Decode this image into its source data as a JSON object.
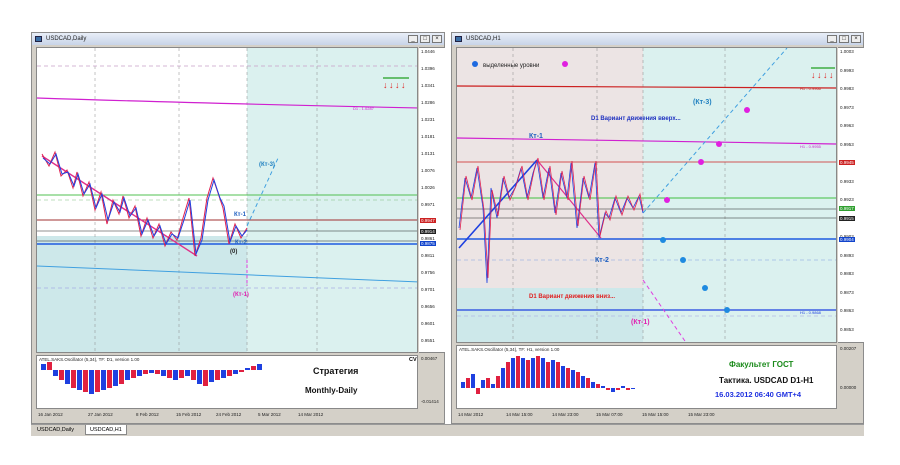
{
  "left": {
    "title": "USDCAD,Daily",
    "price_axis": [
      "1.0446",
      "1.0396",
      "1.0341",
      "1.0286",
      "1.0231",
      "1.0181",
      "1.0131",
      "1.0076",
      "1.0026",
      "0.9971",
      "0.9916",
      "0.9861",
      "0.9811",
      "0.9756",
      "0.9701",
      "0.9656",
      "0.9601",
      "0.9551"
    ],
    "price_tags": {
      "red": "0.9947",
      "dark": "0.9914",
      "blue": "0.9875"
    },
    "labels": {
      "kt3": "(Кт-3)",
      "kt1": "Кт-1",
      "kt2": "Кт-2",
      "zero": "(0)",
      "kt1b": "(Кт-1)",
      "d1": "D1 - 1.0287"
    },
    "osc_label": "ATEL.SAKS.Oscillator (5,34), TF: D1, version 1.00",
    "osc_values": [
      "0.00467",
      "-0.01414"
    ],
    "cv": "CV",
    "strategy_title": "Стратегия",
    "strategy_sub": "Monthly-Daily",
    "dates": [
      "16 Jan 2012",
      "27 Jan 2012",
      "8 Feb 2012",
      "15 Feb 2012",
      "24 Feb 2012",
      "5 Mar 2012",
      "14 Mar 2012"
    ]
  },
  "right": {
    "title": "USDCAD,H1",
    "legend": "выделенные уровни",
    "price_axis": [
      "1.0003",
      "0.9993",
      "0.9983",
      "0.9973",
      "0.9963",
      "0.9953",
      "0.9943",
      "0.9933",
      "0.9923",
      "0.9913",
      "0.9903",
      "0.9893",
      "0.9883",
      "0.9873",
      "0.9863",
      "0.9853"
    ],
    "price_tags": {
      "red": "0.9945",
      "green": "0.9917",
      "dark": "0.9915",
      "blue": "0.9904"
    },
    "labels": {
      "kt3": "(Кт-3)",
      "kt1": "Кт-1",
      "kt2": "Кт-2",
      "kt1b": "(Кт-1)",
      "up": "D1 Вариант движения вверх...",
      "down": "D1 Вариант движения вниз...",
      "h1a": "H1 - 0.9966",
      "h1b": "H1 - 0.9955",
      "h1c": "H1 - 0.9868"
    },
    "osc_label": "ATEL.SAKS.Oscillator (5,34), TF: H1, version 1.00",
    "osc_values": [
      "0.00207",
      "0.00000"
    ],
    "faculty": "Факультет ГОСТ",
    "tactic": "Тактика. USDCAD D1-H1",
    "datetime": "16.03.2012 06:40 GMT+4",
    "dates": [
      "14 Mar 2012",
      "14 Mar 15:00",
      "14 Mar 23:00",
      "15 Mar 07:00",
      "15 Mar 15:00",
      "15 Mar 23:00"
    ]
  },
  "tabs": [
    "USDCAD,Daily",
    "USDCAD,H1"
  ],
  "colors": {
    "accent_cyan": "#d8f0ee",
    "price_red": "#cc2222",
    "price_blue": "#1144cc",
    "magenta": "#e040e0",
    "faculty_green": "#1a8a1a"
  }
}
